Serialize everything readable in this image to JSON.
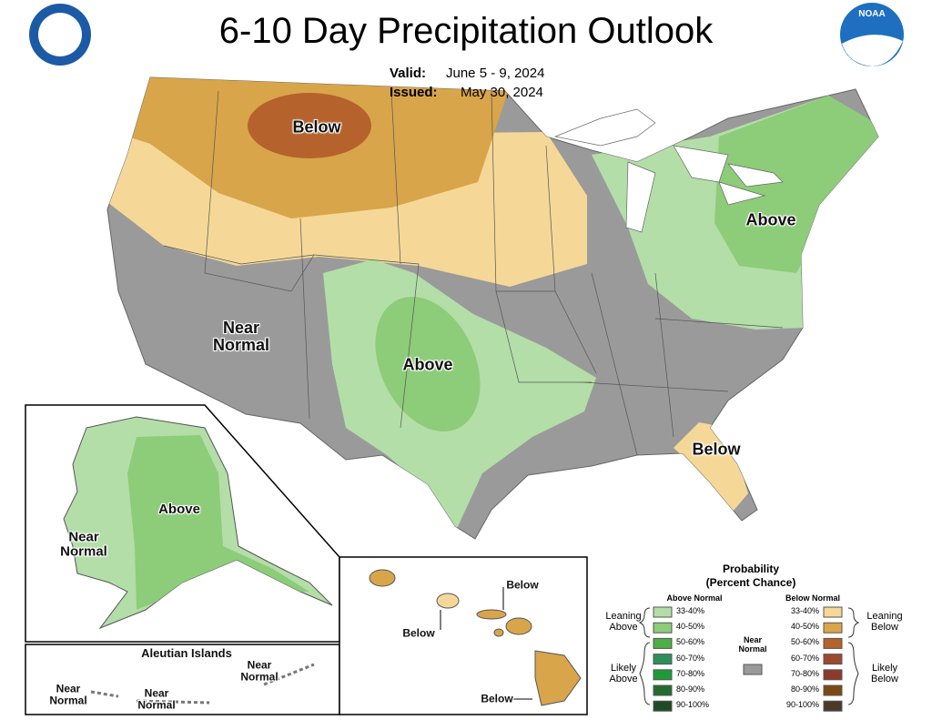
{
  "header": {
    "title": "6-10 Day Precipitation Outlook",
    "valid_label": "Valid:",
    "valid_dates": "June 5 - 9, 2024",
    "issued_label": "Issued:",
    "issued_date": "May 30, 2024",
    "noaa_logo": "NOAA"
  },
  "conus_labels": [
    "Below",
    "Above",
    "Near Normal",
    "Above",
    "Below"
  ],
  "alaska_labels": [
    "Above",
    "Near Normal"
  ],
  "aleutian": {
    "title": "Aleutian Islands",
    "labels": [
      "Near Normal",
      "Near Normal",
      "Near Normal"
    ]
  },
  "hawaii_labels": [
    "Below",
    "Below",
    "Below"
  ],
  "legend": {
    "title": "Probability",
    "subtitle": "(Percent Chance)",
    "above_header": "Above Normal",
    "below_header": "Below Normal",
    "near_normal": "Near Normal",
    "near_normal_color": "#9a9a9a",
    "above": [
      {
        "label": "33-40%",
        "color": "#b3dea8"
      },
      {
        "label": "40-50%",
        "color": "#8dcc79"
      },
      {
        "label": "50-60%",
        "color": "#4cb043"
      },
      {
        "label": "60-70%",
        "color": "#2f8f5a"
      },
      {
        "label": "70-80%",
        "color": "#1f9a3a"
      },
      {
        "label": "80-90%",
        "color": "#246b2f"
      },
      {
        "label": "90-100%",
        "color": "#1f4a26"
      }
    ],
    "below": [
      {
        "label": "33-40%",
        "color": "#f5d898"
      },
      {
        "label": "40-50%",
        "color": "#d9a54a"
      },
      {
        "label": "50-60%",
        "color": "#b5622c"
      },
      {
        "label": "60-70%",
        "color": "#9c4a2e"
      },
      {
        "label": "70-80%",
        "color": "#8b3a2b"
      },
      {
        "label": "80-90%",
        "color": "#7a4a12"
      },
      {
        "label": "90-100%",
        "color": "#4a3a2a"
      }
    ],
    "leaning_above": "Leaning Above",
    "likely_above": "Likely Above",
    "leaning_below": "Leaning Below",
    "likely_below": "Likely Below"
  }
}
